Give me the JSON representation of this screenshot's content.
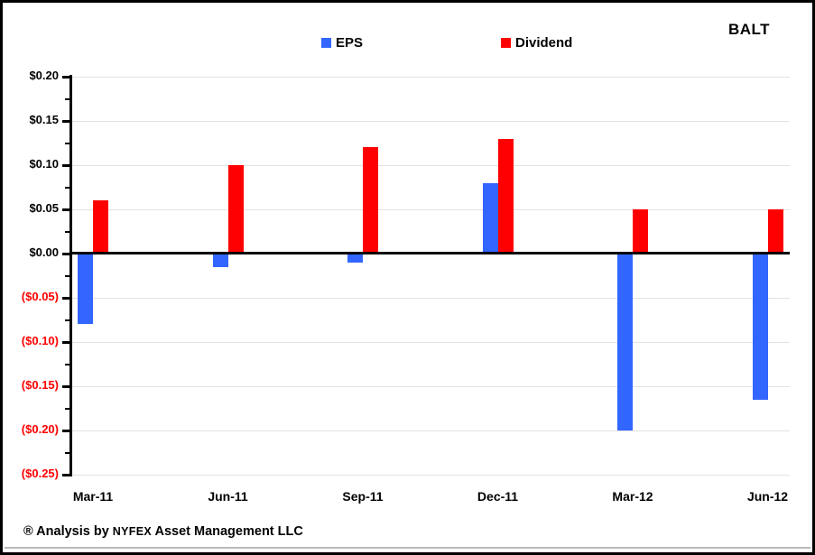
{
  "header": {
    "title": "BALT"
  },
  "legend": {
    "items": [
      {
        "label": "EPS",
        "color": "#3366FF"
      },
      {
        "label": "Dividend",
        "color": "#FF0000"
      }
    ]
  },
  "footer": {
    "prefix": "® Analysis by ",
    "brand": "NYFEX",
    "suffix": " Asset Management LLC"
  },
  "chart_data": {
    "type": "bar",
    "title": "BALT",
    "categories": [
      "Mar-11",
      "Jun-11",
      "Sep-11",
      "Dec-11",
      "Mar-12",
      "Jun-12"
    ],
    "series": [
      {
        "name": "EPS",
        "color": "#3366FF",
        "values": [
          -0.08,
          -0.015,
          -0.01,
          0.08,
          -0.2,
          -0.165
        ]
      },
      {
        "name": "Dividend",
        "color": "#FF0000",
        "values": [
          0.06,
          0.1,
          0.12,
          0.13,
          0.05,
          0.05
        ]
      }
    ],
    "ylim": [
      -0.25,
      0.2
    ],
    "y_tick_step": 0.05,
    "y_minor_tick_step": 0.025,
    "y_ticks": [
      {
        "value": 0.2,
        "label": "$0.20"
      },
      {
        "value": 0.15,
        "label": "$0.15"
      },
      {
        "value": 0.1,
        "label": "$0.10"
      },
      {
        "value": 0.05,
        "label": "$0.05"
      },
      {
        "value": 0.0,
        "label": "$0.00"
      },
      {
        "value": -0.05,
        "label": "($0.05)"
      },
      {
        "value": -0.1,
        "label": "($0.10)"
      },
      {
        "value": -0.15,
        "label": "($0.15)"
      },
      {
        "value": -0.2,
        "label": "($0.20)"
      },
      {
        "value": -0.25,
        "label": "($0.25)"
      }
    ],
    "grid": "horizontal",
    "legend_position": "top",
    "positive_label_color": "#000000",
    "negative_label_color": "#FF0000"
  }
}
